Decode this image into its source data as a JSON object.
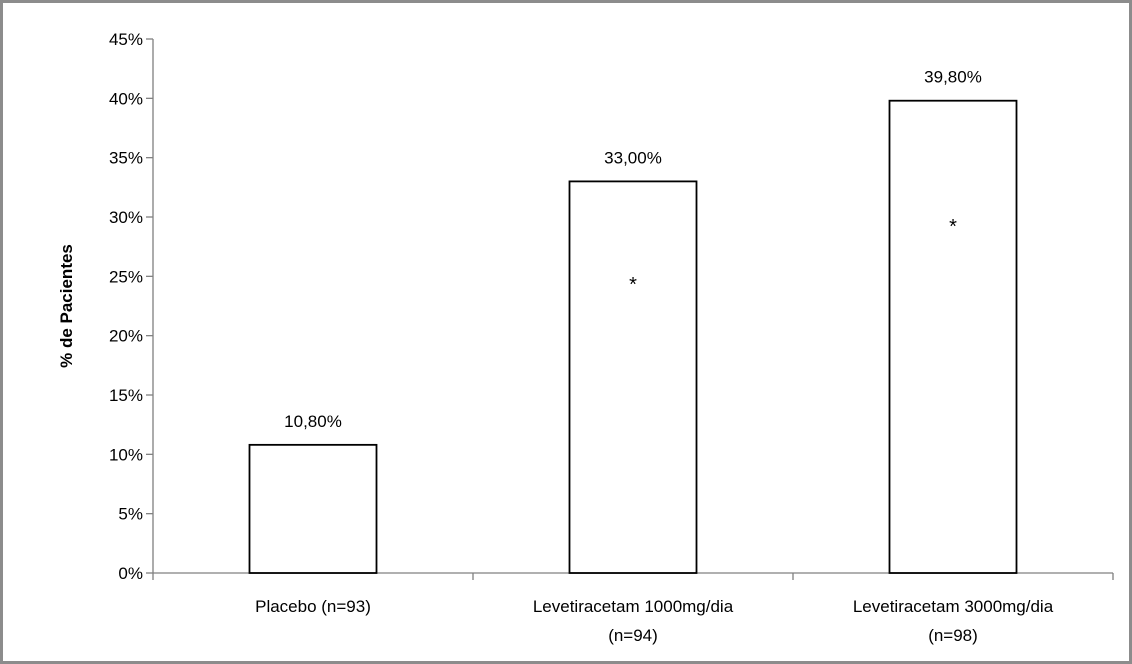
{
  "chart_data": {
    "type": "bar",
    "categories": [
      [
        "Placebo (n=93)"
      ],
      [
        "Levetiracetam 1000mg/dia",
        "(n=94)"
      ],
      [
        "Levetiracetam 3000mg/dia",
        "(n=98)"
      ]
    ],
    "values": [
      10.8,
      33.0,
      39.8
    ],
    "data_labels": [
      "10,80%",
      "33,00%",
      "39,80%"
    ],
    "significance_markers": [
      "",
      "*",
      "*"
    ],
    "ylabel": "% de Pacientes",
    "xlabel": "",
    "title": "",
    "ylim": [
      0,
      45
    ],
    "y_ticks": [
      0,
      5,
      10,
      15,
      20,
      25,
      30,
      35,
      40,
      45
    ],
    "y_tick_labels": [
      "0%",
      "5%",
      "10%",
      "15%",
      "20%",
      "25%",
      "30%",
      "35%",
      "40%",
      "45%"
    ],
    "grid": false,
    "legend": "none",
    "bar_fill": "#ffffff",
    "bar_stroke": "#000000",
    "axis_color": "#808080"
  }
}
